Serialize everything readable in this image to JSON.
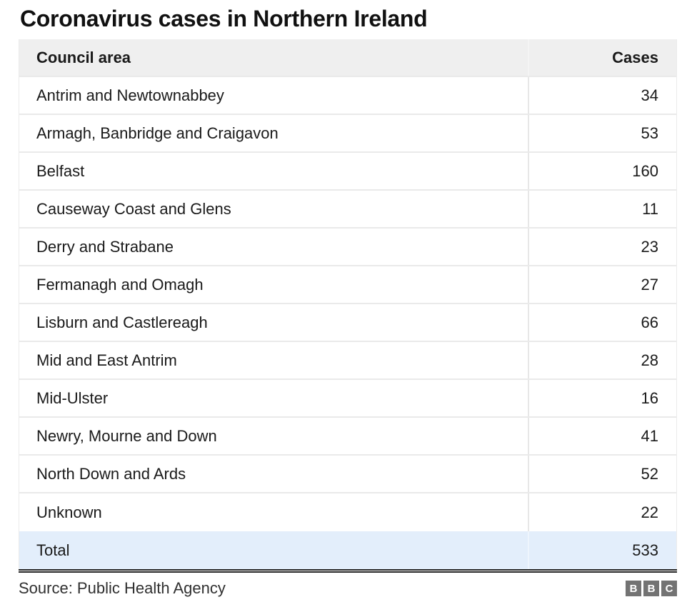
{
  "title": "Coronavirus cases in Northern Ireland",
  "table": {
    "columns": [
      {
        "label": "Council area"
      },
      {
        "label": "Cases"
      }
    ],
    "rows": [
      {
        "area": "Antrim and Newtownabbey",
        "cases": "34"
      },
      {
        "area": "Armagh, Banbridge and Craigavon",
        "cases": "53"
      },
      {
        "area": "Belfast",
        "cases": "160"
      },
      {
        "area": "Causeway Coast and Glens",
        "cases": "11"
      },
      {
        "area": "Derry and Strabane",
        "cases": "23"
      },
      {
        "area": "Fermanagh and Omagh",
        "cases": "27"
      },
      {
        "area": "Lisburn and Castlereagh",
        "cases": "66"
      },
      {
        "area": "Mid and East Antrim",
        "cases": "28"
      },
      {
        "area": "Mid-Ulster",
        "cases": "16"
      },
      {
        "area": "Newry, Mourne and Down",
        "cases": "41"
      },
      {
        "area": "North Down and Ards",
        "cases": "52"
      },
      {
        "area": "Unknown",
        "cases": "22"
      }
    ],
    "total": {
      "area": "Total",
      "cases": "533"
    }
  },
  "footer": {
    "source": "Source: Public Health Agency",
    "logo_letters": [
      "B",
      "B",
      "C"
    ]
  },
  "colors": {
    "header_background": "#efefef",
    "total_row_background": "#e3eefb",
    "row_divider": "#eaeaea",
    "bottom_rule": "#262626",
    "logo_block": "#737373"
  },
  "chart_data": {
    "type": "table",
    "title": "Coronavirus cases in Northern Ireland",
    "columns": [
      "Council area",
      "Cases"
    ],
    "rows": [
      [
        "Antrim and Newtownabbey",
        34
      ],
      [
        "Armagh, Banbridge and Craigavon",
        53
      ],
      [
        "Belfast",
        160
      ],
      [
        "Causeway Coast and Glens",
        11
      ],
      [
        "Derry and Strabane",
        23
      ],
      [
        "Fermanagh and Omagh",
        27
      ],
      [
        "Lisburn and Castlereagh",
        66
      ],
      [
        "Mid and East Antrim",
        28
      ],
      [
        "Mid-Ulster",
        16
      ],
      [
        "Newry, Mourne and Down",
        41
      ],
      [
        "North Down and Ards",
        52
      ],
      [
        "Unknown",
        22
      ]
    ],
    "total": [
      "Total",
      533
    ],
    "source": "Source: Public Health Agency"
  }
}
